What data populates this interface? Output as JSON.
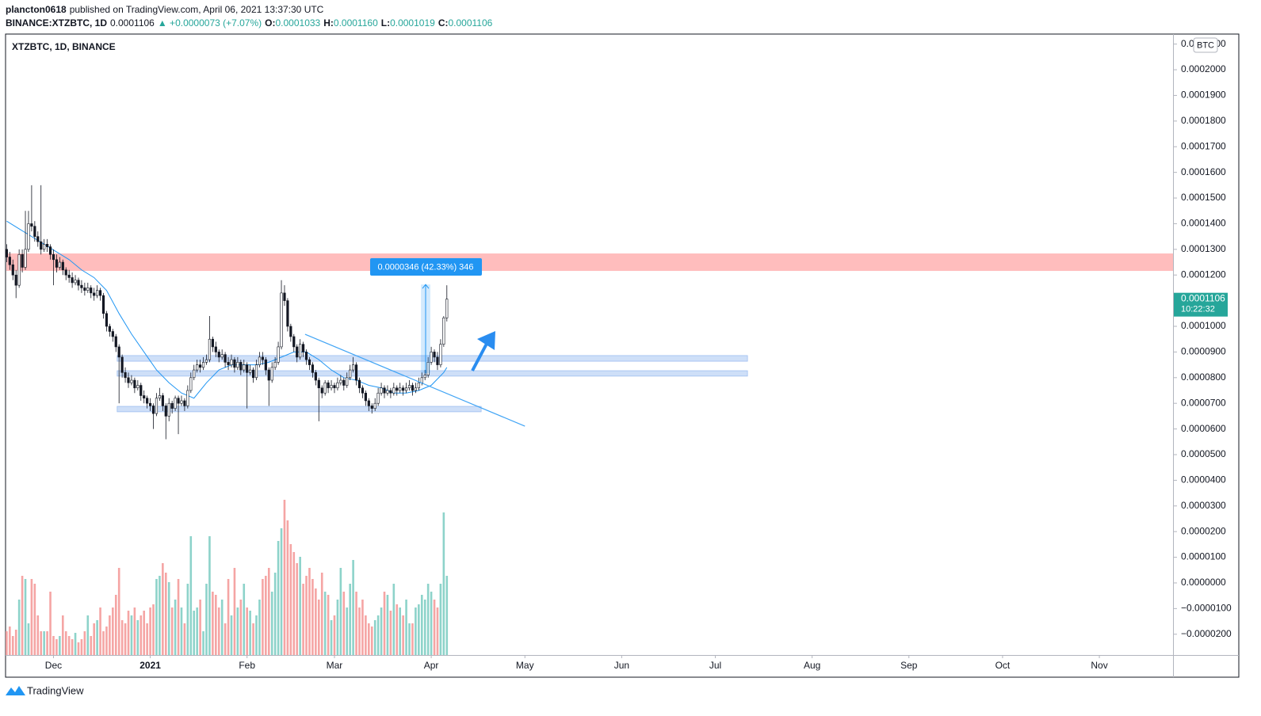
{
  "header": {
    "author": "plancton0618",
    "published": "published on TradingView.com, April 06, 2021 13:37:30 UTC",
    "symbol": "BINANCE:XTZBTC, 1D",
    "price": "0.0001106",
    "change": "▲ +0.0000073 (+7.07%)",
    "ohlc": [
      {
        "key": "O:",
        "value": "0.0001033"
      },
      {
        "key": "H:",
        "value": "0.0001160"
      },
      {
        "key": "L:",
        "value": "0.0001019"
      },
      {
        "key": "C:",
        "value": "0.0001106"
      }
    ]
  },
  "footer": {
    "brand": "TradingView"
  },
  "chart_data": {
    "type": "candlestick",
    "title": "XTZBTC, 1D, BINANCE",
    "currency": "BTC",
    "up_color": "#26a69a",
    "down_color": "#ef5350",
    "volume_up_color": "#8dd3ca",
    "volume_down_color": "#f5a5a4",
    "xlim": [
      -0.1,
      373.6
    ],
    "xticks": [
      {
        "value": 15,
        "label": "Dec"
      },
      {
        "value": 46,
        "label": "2021"
      },
      {
        "value": 77,
        "label": "Feb"
      },
      {
        "value": 105,
        "label": "Mar"
      },
      {
        "value": 136,
        "label": "Apr"
      },
      {
        "value": 166,
        "label": "May"
      },
      {
        "value": 197,
        "label": "Jun"
      },
      {
        "value": 227,
        "label": "Jul"
      },
      {
        "value": 258,
        "label": "Aug"
      },
      {
        "value": 289,
        "label": "Sep"
      },
      {
        "value": 319,
        "label": "Oct"
      },
      {
        "value": 350,
        "label": "Nov"
      }
    ],
    "ylim": [
      -2.81e-05,
      0.0002136
    ],
    "yticks": [
      {
        "value": 0.00021,
        "label": "0.0002100"
      },
      {
        "value": 0.0002,
        "label": "0.0002000"
      },
      {
        "value": 0.00019,
        "label": "0.0001900"
      },
      {
        "value": 0.00018,
        "label": "0.0001800"
      },
      {
        "value": 0.00017,
        "label": "0.0001700"
      },
      {
        "value": 0.00016,
        "label": "0.0001600"
      },
      {
        "value": 0.00015,
        "label": "0.0001500"
      },
      {
        "value": 0.00014,
        "label": "0.0001400"
      },
      {
        "value": 0.00013,
        "label": "0.0001300"
      },
      {
        "value": 0.00012,
        "label": "0.0001200"
      },
      {
        "value": 0.00011,
        "label": "0.0001100"
      },
      {
        "value": 0.0001,
        "label": "0.0001000"
      },
      {
        "value": 9e-05,
        "label": "0.0000900"
      },
      {
        "value": 8e-05,
        "label": "0.0000800"
      },
      {
        "value": 7e-05,
        "label": "0.0000700"
      },
      {
        "value": 6e-05,
        "label": "0.0000600"
      },
      {
        "value": 5e-05,
        "label": "0.0000500"
      },
      {
        "value": 4e-05,
        "label": "0.0000400"
      },
      {
        "value": 3e-05,
        "label": "0.0000300"
      },
      {
        "value": 2e-05,
        "label": "0.0000200"
      },
      {
        "value": 1e-05,
        "label": "0.0000100"
      },
      {
        "value": 0,
        "label": "0.0000000"
      },
      {
        "value": -1e-05,
        "label": "−0.0000100"
      },
      {
        "value": -2e-05,
        "label": "−0.0000200"
      }
    ],
    "open": [
      0.00013,
      0.000127,
      0.000124,
      0.00012,
      0.000116,
      0.000128,
      0.000123,
      0.00013,
      0.00014,
      0.000139,
      0.000135,
      0.000133,
      0.00013,
      0.000132,
      0.000131,
      0.000128,
      0.000126,
      0.000123,
      0.000125,
      0.000122,
      0.00012,
      0.000119,
      0.000117,
      0.000118,
      0.000116,
      0.000115,
      0.000114,
      0.000115,
      0.000113,
      0.000112,
      0.000114,
      0.000112,
      0.000105,
      0.0001,
      9.8e-05,
      9.6e-05,
      9.2e-05,
      8.8e-05,
      8.2e-05,
      8e-05,
      7.8e-05,
      7.9e-05,
      7.6e-05,
      7.7e-05,
      7.3e-05,
      7.2e-05,
      7e-05,
      6.9e-05,
      6.6e-05,
      7.2e-05,
      7.3e-05,
      6.9e-05,
      6.5e-05,
      7e-05,
      6.8e-05,
      7.2e-05,
      7e-05,
      7.1e-05,
      6.9e-05,
      7.5e-05,
      8e-05,
      8.3e-05,
      8.5e-05,
      8.4e-05,
      8.6e-05,
      8.7e-05,
      9.5e-05,
      9.2e-05,
      9e-05,
      8.8e-05,
      8.9e-05,
      8.6e-05,
      8.5e-05,
      8.7e-05,
      8.4e-05,
      8.6e-05,
      8.3e-05,
      8.5e-05,
      8.2e-05,
      8.3e-05,
      8e-05,
      8.5e-05,
      8.8e-05,
      8.7e-05,
      8.3e-05,
      7.9e-05,
      8.4e-05,
      8.6e-05,
      9.2e-05,
      0.000113,
      0.00011,
      0.0001,
      9.6e-05,
      9.2e-05,
      8.8e-05,
      9.3e-05,
      9e-05,
      8.7e-05,
      8.5e-05,
      8.2e-05,
      7.9e-05,
      7.6e-05,
      7.4e-05,
      7.8e-05,
      7.6e-05,
      7.7e-05,
      7.6e-05,
      7.8e-05,
      7.9e-05,
      7.7e-05,
      8e-05,
      8.3e-05,
      8.5e-05,
      7.9e-05,
      7.6e-05,
      7.4e-05,
      7.1e-05,
      6.9e-05,
      6.8e-05,
      7e-05,
      7.4e-05,
      7.6e-05,
      7.4e-05,
      7.5e-05,
      7.4e-05,
      7.6e-05,
      7.5e-05,
      7.6e-05,
      7.5e-05,
      7.6e-05,
      7.7e-05,
      7.5e-05,
      7.6e-05,
      7.8e-05,
      8e-05,
      8.1e-05,
      8.6e-05,
      9e-05,
      8.8e-05,
      8.5e-05,
      9.3e-05,
      0.0001033
    ],
    "high": [
      0.000132,
      0.000129,
      0.000126,
      0.000122,
      0.00013,
      0.00013,
      0.000145,
      0.000145,
      0.000155,
      0.000141,
      0.000137,
      0.000155,
      0.000134,
      0.000134,
      0.000132,
      0.00013,
      0.000128,
      0.000127,
      0.000126,
      0.000123,
      0.000122,
      0.000121,
      0.00012,
      0.000119,
      0.000118,
      0.000117,
      0.000117,
      0.000116,
      0.000115,
      0.000116,
      0.000115,
      0.000113,
      0.000106,
      0.000101,
      9.9e-05,
      9.7e-05,
      9.3e-05,
      8.9e-05,
      8.4e-05,
      8.2e-05,
      8.1e-05,
      8e-05,
      7.9e-05,
      7.8e-05,
      7.5e-05,
      7.3e-05,
      7.2e-05,
      7e-05,
      7.4e-05,
      7.6e-05,
      7.4e-05,
      7e-05,
      7.2e-05,
      7.1e-05,
      7.3e-05,
      7.3e-05,
      7.3e-05,
      7.2e-05,
      7.7e-05,
      8.2e-05,
      8.5e-05,
      8.7e-05,
      8.7e-05,
      8.8e-05,
      8.9e-05,
      0.000104,
      9.6e-05,
      9.4e-05,
      9.1e-05,
      9.1e-05,
      9e-05,
      8.8e-05,
      8.9e-05,
      8.8e-05,
      8.8e-05,
      8.7e-05,
      8.7e-05,
      8.6e-05,
      8.5e-05,
      8.4e-05,
      8.7e-05,
      9e-05,
      9e-05,
      8.8e-05,
      8.4e-05,
      8.6e-05,
      8.8e-05,
      9.4e-05,
      0.000118,
      0.000116,
      0.000111,
      0.000101,
      9.7e-05,
      9.3e-05,
      9.5e-05,
      9.4e-05,
      9.1e-05,
      8.8e-05,
      8.6e-05,
      8.3e-05,
      8e-05,
      7.7e-05,
      7.9e-05,
      7.9e-05,
      7.9e-05,
      7.8e-05,
      8e-05,
      8.1e-05,
      8e-05,
      8.2e-05,
      8.5e-05,
      8.8e-05,
      8.6e-05,
      8e-05,
      7.7e-05,
      7.5e-05,
      7.2e-05,
      7e-05,
      7.2e-05,
      7.6e-05,
      7.8e-05,
      7.7e-05,
      7.7e-05,
      7.6e-05,
      7.8e-05,
      7.7e-05,
      7.8e-05,
      7.7e-05,
      7.8e-05,
      7.9e-05,
      7.8e-05,
      7.8e-05,
      8e-05,
      8.2e-05,
      8.3e-05,
      8.8e-05,
      9.2e-05,
      9.1e-05,
      9e-05,
      9.5e-05,
      0.000104,
      0.000116
    ],
    "low": [
      0.000125,
      0.000122,
      0.000118,
      0.000111,
      0.000115,
      0.000121,
      0.000122,
      0.000129,
      0.000137,
      0.000133,
      0.000131,
      0.000128,
      0.000129,
      0.000129,
      0.000126,
      0.000116,
      0.000121,
      0.000122,
      0.00012,
      0.000118,
      0.000117,
      0.000115,
      0.000116,
      0.000114,
      0.000113,
      0.000112,
      0.000113,
      0.000111,
      0.00011,
      0.000111,
      0.00011,
      0.000103,
      9.8e-05,
      9.6e-05,
      9.4e-05,
      9e-05,
      7e-05,
      8e-05,
      7.8e-05,
      7.6e-05,
      7.7e-05,
      7.4e-05,
      7.5e-05,
      7.1e-05,
      7e-05,
      6.8e-05,
      6.7e-05,
      6e-05,
      6.5e-05,
      7.1e-05,
      6.7e-05,
      5.6e-05,
      6.3e-05,
      6.6e-05,
      6.7e-05,
      5.8e-05,
      6.9e-05,
      6.7e-05,
      6.8e-05,
      7.4e-05,
      7.9e-05,
      8.2e-05,
      8.2e-05,
      8.3e-05,
      8.5e-05,
      8.6e-05,
      9e-05,
      8.8e-05,
      8.6e-05,
      8.7e-05,
      8.4e-05,
      8.3e-05,
      8.4e-05,
      8.2e-05,
      8.3e-05,
      8.1e-05,
      8.2e-05,
      6.8e-05,
      8.1e-05,
      7.8e-05,
      7.9e-05,
      8.4e-05,
      8.5e-05,
      8.1e-05,
      6.9e-05,
      7.8e-05,
      8.3e-05,
      8.5e-05,
      9.1e-05,
      0.000108,
      9.8e-05,
      9.4e-05,
      9e-05,
      8.6e-05,
      8.7e-05,
      8.8e-05,
      8.5e-05,
      8.3e-05,
      8e-05,
      7.7e-05,
      6.3e-05,
      7.2e-05,
      7.3e-05,
      7.4e-05,
      7.5e-05,
      7.4e-05,
      7.5e-05,
      7.7e-05,
      7.5e-05,
      7.6e-05,
      7.9e-05,
      8.2e-05,
      7.7e-05,
      7.4e-05,
      7.2e-05,
      6.9e-05,
      6.7e-05,
      6.6e-05,
      6.7e-05,
      6.9e-05,
      7.3e-05,
      7.2e-05,
      7.3e-05,
      7.2e-05,
      7.3e-05,
      7.3e-05,
      7.4e-05,
      7.3e-05,
      7.4e-05,
      7.5e-05,
      7.3e-05,
      7.4e-05,
      7.5e-05,
      7.7e-05,
      7.9e-05,
      8e-05,
      8.5e-05,
      8.6e-05,
      8.3e-05,
      8.4e-05,
      9.2e-05,
      0.0001019
    ],
    "close": [
      0.000127,
      0.000124,
      0.00012,
      0.000116,
      0.000128,
      0.000123,
      0.00013,
      0.00014,
      0.000139,
      0.000135,
      0.000133,
      0.00013,
      0.000132,
      0.000131,
      0.000128,
      0.000126,
      0.000123,
      0.000125,
      0.000122,
      0.00012,
      0.000119,
      0.000117,
      0.000118,
      0.000116,
      0.000115,
      0.000114,
      0.000115,
      0.000113,
      0.000112,
      0.000114,
      0.000112,
      0.000105,
      0.0001,
      9.8e-05,
      9.6e-05,
      9.2e-05,
      8.8e-05,
      8.2e-05,
      8e-05,
      7.8e-05,
      7.9e-05,
      7.6e-05,
      7.7e-05,
      7.3e-05,
      7.2e-05,
      7e-05,
      6.9e-05,
      6.6e-05,
      7.2e-05,
      7.3e-05,
      6.9e-05,
      6.5e-05,
      7e-05,
      6.8e-05,
      7.2e-05,
      7e-05,
      7.1e-05,
      6.9e-05,
      7.5e-05,
      8e-05,
      8.3e-05,
      8.5e-05,
      8.4e-05,
      8.6e-05,
      8.7e-05,
      9.5e-05,
      9.2e-05,
      9e-05,
      8.8e-05,
      8.9e-05,
      8.6e-05,
      8.5e-05,
      8.7e-05,
      8.4e-05,
      8.6e-05,
      8.3e-05,
      8.5e-05,
      8.2e-05,
      8.3e-05,
      8e-05,
      8.5e-05,
      8.8e-05,
      8.7e-05,
      8.3e-05,
      7.9e-05,
      8.4e-05,
      8.6e-05,
      9.2e-05,
      0.000113,
      0.00011,
      0.0001,
      9.6e-05,
      9.2e-05,
      8.8e-05,
      9.3e-05,
      9e-05,
      8.7e-05,
      8.5e-05,
      8.2e-05,
      7.9e-05,
      7.6e-05,
      7.4e-05,
      7.8e-05,
      7.6e-05,
      7.7e-05,
      7.6e-05,
      7.8e-05,
      7.9e-05,
      7.7e-05,
      8e-05,
      8.3e-05,
      8.5e-05,
      7.9e-05,
      7.6e-05,
      7.4e-05,
      7.1e-05,
      6.9e-05,
      6.8e-05,
      7e-05,
      7.4e-05,
      7.6e-05,
      7.4e-05,
      7.5e-05,
      7.4e-05,
      7.6e-05,
      7.5e-05,
      7.6e-05,
      7.5e-05,
      7.6e-05,
      7.7e-05,
      7.5e-05,
      7.6e-05,
      7.8e-05,
      8e-05,
      8.1e-05,
      8.6e-05,
      9e-05,
      8.8e-05,
      8.5e-05,
      9.3e-05,
      0.0001033,
      0.0001106
    ],
    "volume": [
      15,
      18,
      12,
      16,
      35,
      50,
      48,
      20,
      48,
      45,
      25,
      15,
      15,
      15,
      40,
      12,
      10,
      12,
      25,
      15,
      12,
      10,
      14,
      8,
      10,
      15,
      25,
      12,
      20,
      22,
      30,
      15,
      18,
      25,
      30,
      38,
      55,
      22,
      20,
      28,
      25,
      30,
      22,
      25,
      28,
      20,
      30,
      32,
      48,
      50,
      58,
      52,
      46,
      30,
      35,
      48,
      30,
      20,
      45,
      75,
      28,
      30,
      35,
      15,
      45,
      75,
      40,
      38,
      30,
      35,
      20,
      48,
      25,
      55,
      30,
      35,
      45,
      30,
      28,
      20,
      25,
      35,
      48,
      50,
      55,
      40,
      52,
      72,
      80,
      98,
      85,
      70,
      65,
      58,
      62,
      45,
      50,
      55,
      48,
      42,
      35,
      52,
      40,
      38,
      22,
      25,
      35,
      55,
      40,
      30,
      45,
      60,
      40,
      30,
      35,
      25,
      20,
      18,
      22,
      25,
      30,
      40,
      38,
      28,
      45,
      32,
      30,
      25,
      35,
      20,
      20,
      30,
      32,
      38,
      35,
      45,
      40,
      35,
      30,
      45,
      90,
      50
    ],
    "ma": {
      "color": "#2196f3",
      "x": [
        0,
        4,
        8,
        12,
        16,
        20,
        24,
        28,
        32,
        36,
        40,
        44,
        48,
        52,
        56,
        60,
        64,
        68,
        72,
        76,
        80,
        84,
        88,
        92,
        96,
        100,
        104,
        108,
        112,
        116,
        120,
        124,
        128,
        132,
        136,
        140,
        141
      ],
      "values": [
        0.000141,
        0.000138,
        0.000135,
        0.000132,
        0.000129,
        0.000126,
        0.000122,
        0.000119,
        0.000114,
        0.000105,
        9.7e-05,
        9e-05,
        8.3e-05,
        7.8e-05,
        7.4e-05,
        7.2e-05,
        7.8e-05,
        8.3e-05,
        8.5e-05,
        8.5e-05,
        8.5e-05,
        8.6e-05,
        8.8e-05,
        9e-05,
        9e-05,
        8.7e-05,
        8.3e-05,
        8e-05,
        7.9e-05,
        7.7e-05,
        7.6e-05,
        7.4e-05,
        7.4e-05,
        7.5e-05,
        7.7e-05,
        8.2e-05,
        8.4e-05
      ]
    },
    "resistance": {
      "low": 0.0001216,
      "high": 0.0001284,
      "color": "#ffbdbd"
    },
    "zones": [
      {
        "from": 35.4,
        "to": 237.3,
        "low": 8.64e-05,
        "high": 8.86e-05
      },
      {
        "from": 35.4,
        "to": 237.3,
        "low": 8.06e-05,
        "high": 8.27e-05
      },
      {
        "from": 35.4,
        "to": 152.0,
        "low": 6.67e-05,
        "high": 6.88e-05
      }
    ],
    "zone_color": "#c6d9f7",
    "trendline": {
      "x": [
        95.6,
        166.0
      ],
      "values": [
        9.69e-05,
        6.11e-05
      ],
      "color": "#42a5f5"
    },
    "measure": {
      "x": [
        132.7,
        135.7
      ],
      "from": 8.17e-05,
      "to": 0.0001163,
      "label": "0.0000346 (42.33%) 346"
    },
    "last_price": {
      "value": 0.0001106,
      "label": "0.0001106",
      "countdown": "10:22:32"
    }
  }
}
